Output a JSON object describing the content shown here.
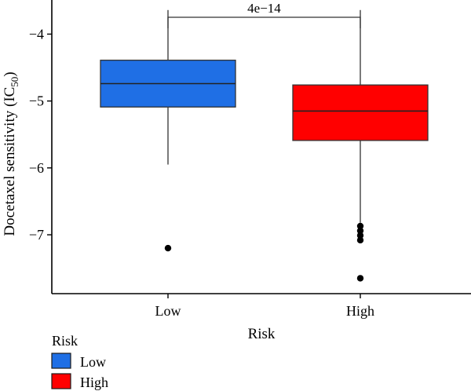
{
  "chart_data": {
    "type": "box",
    "xlabel": "Risk",
    "ylabel": "Docetaxel sensitivity (IC",
    "ylabel_sub": "50",
    "ylabel_close": ")",
    "ylim": [
      -7.88,
      -3.49
    ],
    "yticks": [
      -4,
      -5,
      -6,
      -7
    ],
    "ytick_labels": [
      "−4",
      "−5",
      "−6",
      "−7"
    ],
    "categories": [
      "Low",
      "High"
    ],
    "boxes": [
      {
        "category": "Low",
        "color": "#1f6fe5",
        "whisker_low": -5.95,
        "q1": -5.09,
        "median": -4.74,
        "q3": -4.39,
        "whisker_high": -3.64,
        "outliers": [
          -7.2
        ]
      },
      {
        "category": "High",
        "color": "#ff0000",
        "whisker_low": -6.82,
        "q1": -5.59,
        "median": -5.15,
        "q3": -4.76,
        "whisker_high": -3.64,
        "outliers": [
          -6.87,
          -6.94,
          -7.01,
          -7.08,
          -7.65
        ]
      }
    ],
    "comparison": {
      "label": "4e−14"
    },
    "legend": {
      "title": "Risk",
      "position": "bottom-left",
      "entries": [
        {
          "label": "Low",
          "color": "#1f6fe5"
        },
        {
          "label": "High",
          "color": "#ff0000"
        }
      ]
    },
    "grid": false
  }
}
